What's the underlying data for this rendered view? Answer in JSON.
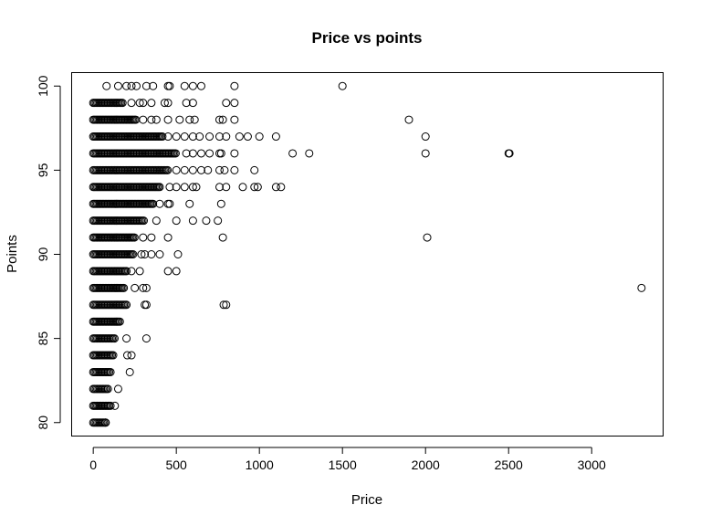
{
  "chart_data": {
    "type": "scatter",
    "title": "Price vs points",
    "xlabel": "Price",
    "ylabel": "Points",
    "xlim": [
      -130,
      3430
    ],
    "ylim": [
      79.2,
      100.8
    ],
    "x_ticks": [
      0,
      500,
      1000,
      1500,
      2000,
      2500,
      3000
    ],
    "y_ticks": [
      80,
      85,
      90,
      95,
      100
    ],
    "grid": false,
    "legend": "none",
    "marker": "open-circle",
    "dense_rows": [
      {
        "y": 80,
        "x_max": 75
      },
      {
        "y": 81,
        "x_max": 110
      },
      {
        "y": 82,
        "x_max": 95
      },
      {
        "y": 83,
        "x_max": 110
      },
      {
        "y": 84,
        "x_max": 120
      },
      {
        "y": 85,
        "x_max": 130
      },
      {
        "y": 86,
        "x_max": 160
      },
      {
        "y": 87,
        "x_max": 200
      },
      {
        "y": 88,
        "x_max": 190
      },
      {
        "y": 89,
        "x_max": 200
      },
      {
        "y": 90,
        "x_max": 240
      },
      {
        "y": 91,
        "x_max": 250
      },
      {
        "y": 92,
        "x_max": 310
      },
      {
        "y": 93,
        "x_max": 360
      },
      {
        "y": 94,
        "x_max": 400
      },
      {
        "y": 95,
        "x_max": 450
      },
      {
        "y": 96,
        "x_max": 500
      },
      {
        "y": 97,
        "x_max": 420
      },
      {
        "y": 98,
        "x_max": 260
      },
      {
        "y": 99,
        "x_max": 180
      }
    ],
    "outliers": [
      {
        "x": 75,
        "y": 80
      },
      {
        "x": 130,
        "y": 81
      },
      {
        "x": 150,
        "y": 82
      },
      {
        "x": 220,
        "y": 83
      },
      {
        "x": 205,
        "y": 84
      },
      {
        "x": 230,
        "y": 84
      },
      {
        "x": 320,
        "y": 85
      },
      {
        "x": 200,
        "y": 85
      },
      {
        "x": 310,
        "y": 87
      },
      {
        "x": 320,
        "y": 87
      },
      {
        "x": 785,
        "y": 87
      },
      {
        "x": 800,
        "y": 87
      },
      {
        "x": 250,
        "y": 88
      },
      {
        "x": 300,
        "y": 88
      },
      {
        "x": 320,
        "y": 88
      },
      {
        "x": 3300,
        "y": 88
      },
      {
        "x": 230,
        "y": 89
      },
      {
        "x": 280,
        "y": 89
      },
      {
        "x": 450,
        "y": 89
      },
      {
        "x": 500,
        "y": 89
      },
      {
        "x": 290,
        "y": 90
      },
      {
        "x": 310,
        "y": 90
      },
      {
        "x": 350,
        "y": 90
      },
      {
        "x": 400,
        "y": 90
      },
      {
        "x": 510,
        "y": 90
      },
      {
        "x": 300,
        "y": 91
      },
      {
        "x": 350,
        "y": 91
      },
      {
        "x": 450,
        "y": 91
      },
      {
        "x": 780,
        "y": 91
      },
      {
        "x": 2010,
        "y": 91
      },
      {
        "x": 380,
        "y": 92
      },
      {
        "x": 500,
        "y": 92
      },
      {
        "x": 600,
        "y": 92
      },
      {
        "x": 680,
        "y": 92
      },
      {
        "x": 750,
        "y": 92
      },
      {
        "x": 400,
        "y": 93
      },
      {
        "x": 450,
        "y": 93
      },
      {
        "x": 460,
        "y": 93
      },
      {
        "x": 580,
        "y": 93
      },
      {
        "x": 770,
        "y": 93
      },
      {
        "x": 460,
        "y": 94
      },
      {
        "x": 500,
        "y": 94
      },
      {
        "x": 550,
        "y": 94
      },
      {
        "x": 600,
        "y": 94
      },
      {
        "x": 620,
        "y": 94
      },
      {
        "x": 760,
        "y": 94
      },
      {
        "x": 800,
        "y": 94
      },
      {
        "x": 900,
        "y": 94
      },
      {
        "x": 970,
        "y": 94
      },
      {
        "x": 990,
        "y": 94
      },
      {
        "x": 1100,
        "y": 94
      },
      {
        "x": 1130,
        "y": 94
      },
      {
        "x": 500,
        "y": 95
      },
      {
        "x": 550,
        "y": 95
      },
      {
        "x": 600,
        "y": 95
      },
      {
        "x": 650,
        "y": 95
      },
      {
        "x": 690,
        "y": 95
      },
      {
        "x": 760,
        "y": 95
      },
      {
        "x": 790,
        "y": 95
      },
      {
        "x": 850,
        "y": 95
      },
      {
        "x": 970,
        "y": 95
      },
      {
        "x": 560,
        "y": 96
      },
      {
        "x": 600,
        "y": 96
      },
      {
        "x": 650,
        "y": 96
      },
      {
        "x": 700,
        "y": 96
      },
      {
        "x": 760,
        "y": 96
      },
      {
        "x": 770,
        "y": 96
      },
      {
        "x": 850,
        "y": 96
      },
      {
        "x": 1200,
        "y": 96
      },
      {
        "x": 1300,
        "y": 96
      },
      {
        "x": 2000,
        "y": 96
      },
      {
        "x": 2500,
        "y": 96
      },
      {
        "x": 2505,
        "y": 96
      },
      {
        "x": 450,
        "y": 97
      },
      {
        "x": 500,
        "y": 97
      },
      {
        "x": 550,
        "y": 97
      },
      {
        "x": 600,
        "y": 97
      },
      {
        "x": 640,
        "y": 97
      },
      {
        "x": 700,
        "y": 97
      },
      {
        "x": 760,
        "y": 97
      },
      {
        "x": 800,
        "y": 97
      },
      {
        "x": 880,
        "y": 97
      },
      {
        "x": 930,
        "y": 97
      },
      {
        "x": 1000,
        "y": 97
      },
      {
        "x": 1100,
        "y": 97
      },
      {
        "x": 2000,
        "y": 97
      },
      {
        "x": 300,
        "y": 98
      },
      {
        "x": 350,
        "y": 98
      },
      {
        "x": 380,
        "y": 98
      },
      {
        "x": 450,
        "y": 98
      },
      {
        "x": 520,
        "y": 98
      },
      {
        "x": 580,
        "y": 98
      },
      {
        "x": 610,
        "y": 98
      },
      {
        "x": 760,
        "y": 98
      },
      {
        "x": 780,
        "y": 98
      },
      {
        "x": 850,
        "y": 98
      },
      {
        "x": 1900,
        "y": 98
      },
      {
        "x": 230,
        "y": 99
      },
      {
        "x": 280,
        "y": 99
      },
      {
        "x": 300,
        "y": 99
      },
      {
        "x": 350,
        "y": 99
      },
      {
        "x": 430,
        "y": 99
      },
      {
        "x": 450,
        "y": 99
      },
      {
        "x": 560,
        "y": 99
      },
      {
        "x": 600,
        "y": 99
      },
      {
        "x": 800,
        "y": 99
      },
      {
        "x": 850,
        "y": 99
      },
      {
        "x": 80,
        "y": 100
      },
      {
        "x": 150,
        "y": 100
      },
      {
        "x": 200,
        "y": 100
      },
      {
        "x": 230,
        "y": 100
      },
      {
        "x": 260,
        "y": 100
      },
      {
        "x": 320,
        "y": 100
      },
      {
        "x": 360,
        "y": 100
      },
      {
        "x": 450,
        "y": 100
      },
      {
        "x": 460,
        "y": 100
      },
      {
        "x": 550,
        "y": 100
      },
      {
        "x": 600,
        "y": 100
      },
      {
        "x": 650,
        "y": 100
      },
      {
        "x": 850,
        "y": 100
      },
      {
        "x": 1500,
        "y": 100
      }
    ]
  }
}
